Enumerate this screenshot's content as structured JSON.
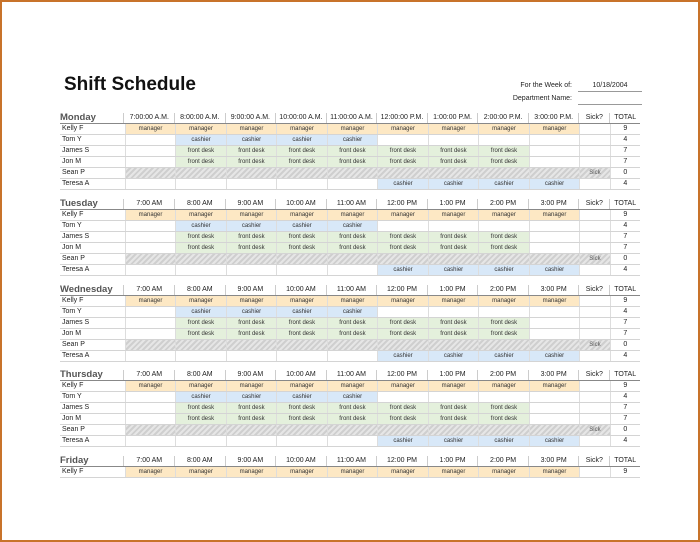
{
  "title": "Shift Schedule",
  "meta": {
    "week_label": "For the Week of:",
    "week_value": "10/18/2004",
    "dept_label": "Department Name:",
    "dept_value": ""
  },
  "sick_header": "Sick?",
  "total_header": "TOTAL",
  "times_monday": [
    "7:00:00 A.M.",
    "8:00:00 A.M.",
    "9:00:00 A.M.",
    "10:00:00 A.M.",
    "11:00:00 A.M.",
    "12:00:00 P.M.",
    "1:00:00 P.M.",
    "2:00:00 P.M.",
    "3:00:00 P.M."
  ],
  "times_other": [
    "7:00 AM",
    "8:00 AM",
    "9:00 AM",
    "10:00 AM",
    "11:00 AM",
    "12:00 PM",
    "1:00 PM",
    "2:00 PM",
    "3:00 PM"
  ],
  "employees": [
    {
      "name": "Kelly F",
      "shifts": [
        "manager",
        "manager",
        "manager",
        "manager",
        "manager",
        "manager",
        "manager",
        "manager",
        "manager"
      ],
      "total": "9"
    },
    {
      "name": "Tom Y",
      "shifts": [
        "",
        "cashier",
        "cashier",
        "cashier",
        "cashier",
        "",
        "",
        "",
        ""
      ],
      "total": "4"
    },
    {
      "name": "James S",
      "shifts": [
        "",
        "front desk",
        "front desk",
        "front desk",
        "front desk",
        "front desk",
        "front desk",
        "front desk",
        ""
      ],
      "total": "7"
    },
    {
      "name": "Jon M",
      "shifts": [
        "",
        "front desk",
        "front desk",
        "front desk",
        "front desk",
        "front desk",
        "front desk",
        "front desk",
        ""
      ],
      "total": "7"
    },
    {
      "name": "Sean P",
      "sick": "Sick",
      "total": "0"
    },
    {
      "name": "Teresa A",
      "shifts": [
        "",
        "",
        "",
        "",
        "",
        "cashier",
        "cashier",
        "cashier",
        "cashier"
      ],
      "total": "4"
    }
  ],
  "days": [
    {
      "name": "Monday",
      "top": 110,
      "times": "monday",
      "rows": 6
    },
    {
      "name": "Tuesday",
      "top": 196,
      "times": "other",
      "rows": 6
    },
    {
      "name": "Wednesday",
      "top": 282,
      "times": "other",
      "rows": 6
    },
    {
      "name": "Thursday",
      "top": 367,
      "times": "other",
      "rows": 6
    },
    {
      "name": "Friday",
      "top": 453,
      "times": "other",
      "rows": 1
    }
  ]
}
